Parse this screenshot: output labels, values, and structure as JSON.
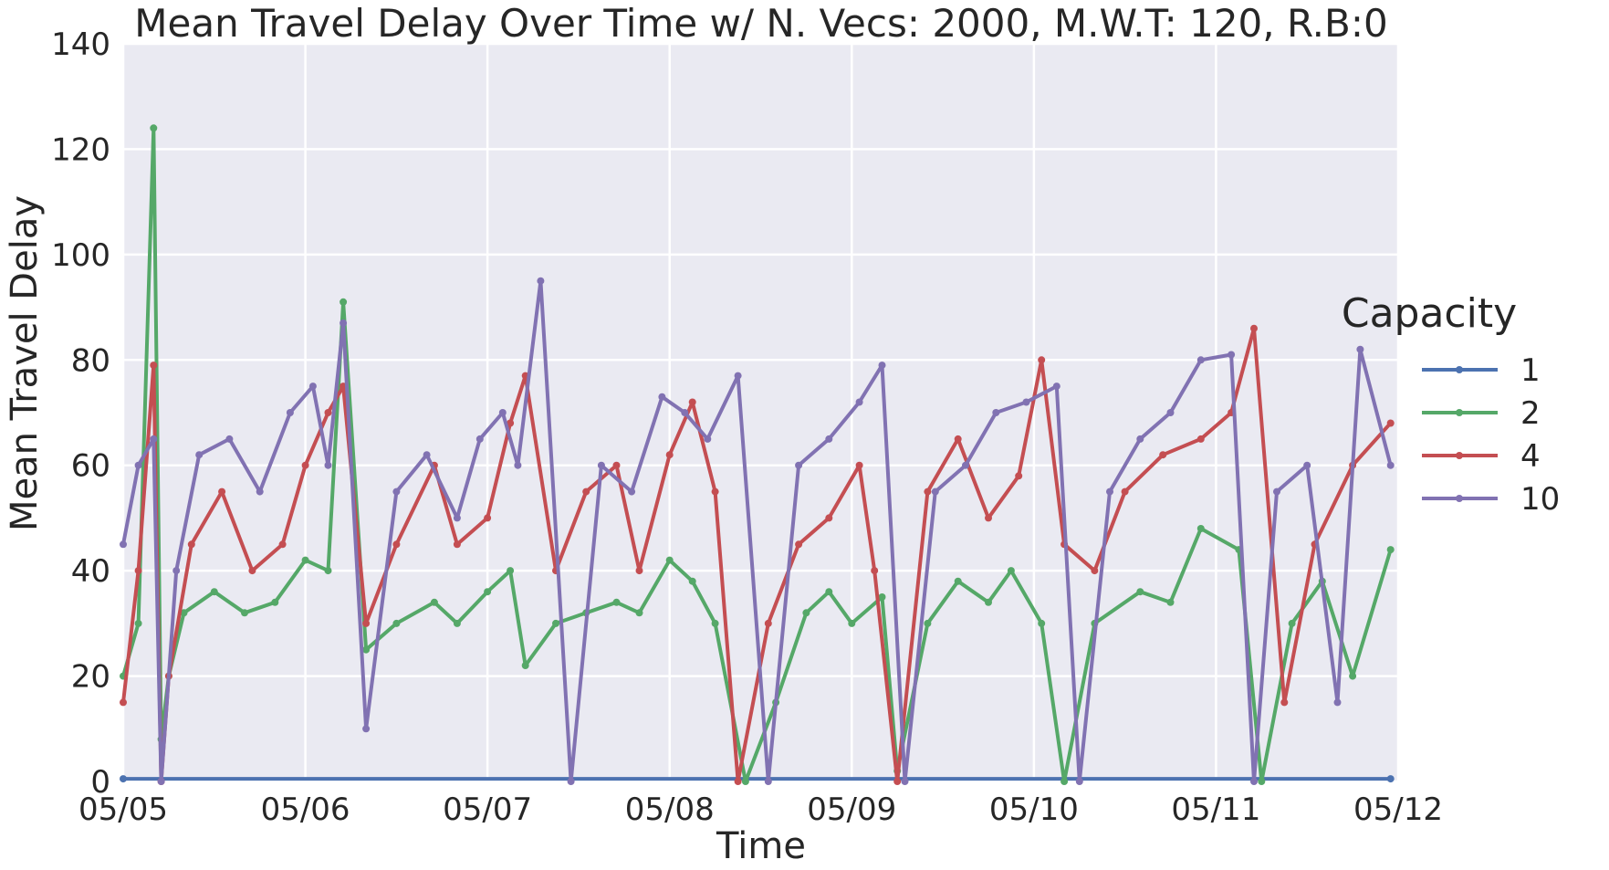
{
  "chart_data": {
    "type": "line",
    "title": "Mean Travel Delay Over Time w/ N. Vecs: 2000, M.W.T: 120, R.B:0",
    "xlabel": "Time",
    "ylabel": "Mean Travel Delay",
    "x_ticks": [
      "05/05",
      "05/06",
      "05/07",
      "05/08",
      "05/09",
      "05/10",
      "05/11",
      "05/12"
    ],
    "y_ticks": [
      "0",
      "20",
      "40",
      "60",
      "80",
      "100",
      "120",
      "140"
    ],
    "xlim": [
      "05/05",
      "05/12"
    ],
    "ylim": [
      0,
      140
    ],
    "grid": true,
    "background": "#EAEAF2",
    "legend": {
      "title": "Capacity",
      "position": "right",
      "entries": [
        "1",
        "2",
        "4",
        "10"
      ]
    },
    "series": [
      {
        "name": "1",
        "color": "#4C72B0",
        "x": [
          "05/05 00:00",
          "05/11 23:00"
        ],
        "values": [
          0.5,
          0.5
        ]
      },
      {
        "name": "2",
        "color": "#55A868",
        "x": [
          "05/05 00:00",
          "05/05 02:00",
          "05/05 04:00",
          "05/05 05:00",
          "05/05 06:00",
          "05/05 08:00",
          "05/05 12:00",
          "05/05 16:00",
          "05/05 20:00",
          "05/06 00:00",
          "05/06 03:00",
          "05/06 05:00",
          "05/06 08:00",
          "05/06 12:00",
          "05/06 17:00",
          "05/06 20:00",
          "05/07 00:00",
          "05/07 03:00",
          "05/07 05:00",
          "05/07 09:00",
          "05/07 13:00",
          "05/07 17:00",
          "05/07 20:00",
          "05/08 00:00",
          "05/08 03:00",
          "05/08 06:00",
          "05/08 10:00",
          "05/08 14:00",
          "05/08 18:00",
          "05/08 21:00",
          "05/09 00:00",
          "05/09 04:00",
          "05/09 06:00",
          "05/09 10:00",
          "05/09 14:00",
          "05/09 18:00",
          "05/09 21:00",
          "05/10 01:00",
          "05/10 04:00",
          "05/10 08:00",
          "05/10 14:00",
          "05/10 18:00",
          "05/10 22:00",
          "05/11 03:00",
          "05/11 06:00",
          "05/11 10:00",
          "05/11 14:00",
          "05/11 18:00",
          "05/11 23:00"
        ],
        "values": [
          20,
          30,
          124,
          8,
          20,
          32,
          36,
          32,
          34,
          42,
          40,
          91,
          25,
          30,
          34,
          30,
          36,
          40,
          22,
          30,
          32,
          34,
          32,
          42,
          38,
          30,
          0,
          15,
          32,
          36,
          30,
          35,
          2,
          30,
          38,
          34,
          40,
          30,
          0,
          30,
          36,
          34,
          48,
          44,
          0,
          30,
          38,
          20,
          44
        ]
      },
      {
        "name": "4",
        "color": "#C44E52",
        "x": [
          "05/05 00:00",
          "05/05 02:00",
          "05/05 04:00",
          "05/05 05:00",
          "05/05 06:00",
          "05/05 09:00",
          "05/05 13:00",
          "05/05 17:00",
          "05/05 21:00",
          "05/06 00:00",
          "05/06 03:00",
          "05/06 05:00",
          "05/06 08:00",
          "05/06 12:00",
          "05/06 17:00",
          "05/06 20:00",
          "05/07 00:00",
          "05/07 03:00",
          "05/07 05:00",
          "05/07 09:00",
          "05/07 13:00",
          "05/07 17:00",
          "05/07 20:00",
          "05/08 00:00",
          "05/08 03:00",
          "05/08 06:00",
          "05/08 09:00",
          "05/08 13:00",
          "05/08 17:00",
          "05/08 21:00",
          "05/09 01:00",
          "05/09 03:00",
          "05/09 06:00",
          "05/09 10:00",
          "05/09 14:00",
          "05/09 18:00",
          "05/09 22:00",
          "05/10 01:00",
          "05/10 04:00",
          "05/10 08:00",
          "05/10 12:00",
          "05/10 17:00",
          "05/10 22:00",
          "05/11 02:00",
          "05/11 05:00",
          "05/11 09:00",
          "05/11 13:00",
          "05/11 18:00",
          "05/11 23:00"
        ],
        "values": [
          15,
          40,
          79,
          0,
          20,
          45,
          55,
          40,
          45,
          60,
          70,
          75,
          30,
          45,
          60,
          45,
          50,
          68,
          77,
          40,
          55,
          60,
          40,
          62,
          72,
          55,
          0,
          30,
          45,
          50,
          60,
          40,
          0,
          55,
          65,
          50,
          58,
          80,
          45,
          40,
          55,
          62,
          65,
          70,
          86,
          15,
          45,
          60,
          68
        ]
      },
      {
        "name": "10",
        "color": "#8172B2",
        "x": [
          "05/05 00:00",
          "05/05 02:00",
          "05/05 04:00",
          "05/05 05:00",
          "05/05 07:00",
          "05/05 10:00",
          "05/05 14:00",
          "05/05 18:00",
          "05/05 22:00",
          "05/06 01:00",
          "05/06 03:00",
          "05/06 05:00",
          "05/06 08:00",
          "05/06 12:00",
          "05/06 16:00",
          "05/06 20:00",
          "05/06 23:00",
          "05/07 02:00",
          "05/07 04:00",
          "05/07 07:00",
          "05/07 11:00",
          "05/07 15:00",
          "05/07 19:00",
          "05/07 23:00",
          "05/08 02:00",
          "05/08 05:00",
          "05/08 09:00",
          "05/08 13:00",
          "05/08 17:00",
          "05/08 21:00",
          "05/09 01:00",
          "05/09 04:00",
          "05/09 07:00",
          "05/09 11:00",
          "05/09 15:00",
          "05/09 19:00",
          "05/09 23:00",
          "05/10 03:00",
          "05/10 06:00",
          "05/10 10:00",
          "05/10 14:00",
          "05/10 18:00",
          "05/10 22:00",
          "05/11 02:00",
          "05/11 05:00",
          "05/11 08:00",
          "05/11 12:00",
          "05/11 16:00",
          "05/11 19:00",
          "05/11 23:00"
        ],
        "values": [
          45,
          60,
          65,
          0,
          40,
          62,
          65,
          55,
          70,
          75,
          60,
          87,
          10,
          55,
          62,
          50,
          65,
          70,
          60,
          95,
          0,
          60,
          55,
          73,
          70,
          65,
          77,
          0,
          60,
          65,
          72,
          79,
          0,
          55,
          60,
          70,
          72,
          75,
          0,
          55,
          65,
          70,
          80,
          81,
          0,
          55,
          60,
          15,
          82,
          60
        ]
      }
    ]
  }
}
